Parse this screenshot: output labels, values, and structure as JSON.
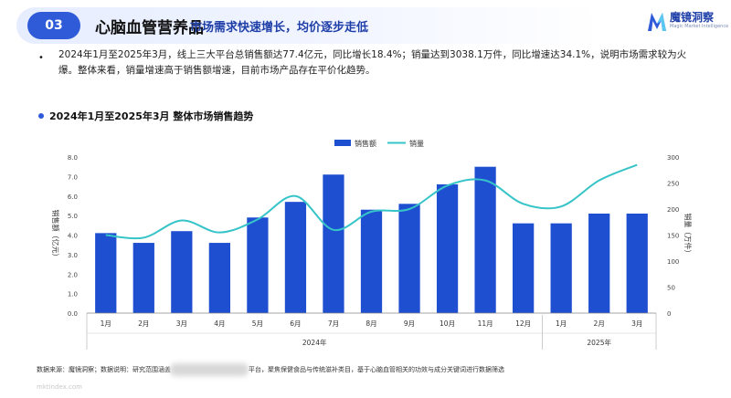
{
  "header": {
    "badge": "03",
    "title": "心脑血管营养品",
    "subtitle": "市场需求快速增长，均价逐步走低"
  },
  "logo": {
    "name": "魔镜洞察",
    "tagline": "Magic Market Intelligence"
  },
  "summary": "2024年1月至2025年3月，线上三大平台总销售额达77.4亿元，同比增长18.4%；销量达到3038.1万件，同比增速达34.1%，说明市场需求较为火爆。整体来看，销量增速高于销售额增速，目前市场产品存在平价化趋势。",
  "section_title": "2024年1月至2025年3月 整体市场销售趋势",
  "footer": {
    "source": "数据来源：魔镜洞察；数据说明：研究范围涵盖",
    "source_tail": "平台，聚焦保健食品与传统滋补类目，基于心脑血管相关的功效与成分关键词进行数据筛选",
    "url": "mktindex.com"
  },
  "colors": {
    "bar": "#1f4fd1",
    "line": "#36c4c8",
    "brand": "#2f5bd9"
  },
  "chart_data": {
    "type": "bar",
    "categories": [
      "1月",
      "2月",
      "3月",
      "4月",
      "5月",
      "6月",
      "7月",
      "8月",
      "9月",
      "10月",
      "11月",
      "12月",
      "1月",
      "2月",
      "3月"
    ],
    "groups": [
      {
        "label": "2024年",
        "span": 12
      },
      {
        "label": "2025年",
        "span": 3
      }
    ],
    "series": [
      {
        "name": "销售额",
        "type": "bar",
        "axis": "left",
        "values": [
          4.1,
          3.6,
          4.2,
          3.6,
          4.9,
          5.7,
          7.1,
          5.3,
          5.6,
          6.6,
          7.5,
          4.6,
          4.6,
          5.1,
          5.1
        ]
      },
      {
        "name": "销量",
        "type": "line",
        "axis": "right",
        "values": [
          150,
          145,
          178,
          155,
          180,
          225,
          160,
          195,
          200,
          245,
          255,
          210,
          205,
          255,
          285
        ]
      }
    ],
    "ylabel": "销售额（亿元）",
    "y2label": "销量（万件）",
    "ylim": [
      0,
      8
    ],
    "y2lim": [
      0,
      300
    ],
    "yticks": [
      "0.0",
      "1.0",
      "2.0",
      "3.0",
      "4.0",
      "5.0",
      "6.0",
      "7.0",
      "8.0"
    ],
    "y2ticks": [
      "0",
      "50",
      "100",
      "150",
      "200",
      "250",
      "300"
    ],
    "legend_position": "top-center",
    "grid": false
  }
}
